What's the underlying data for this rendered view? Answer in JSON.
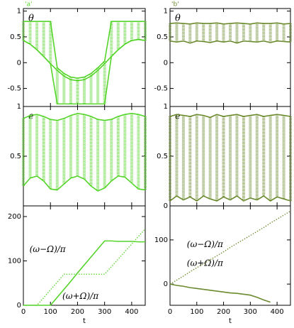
{
  "chart_data": [
    {
      "type": "range",
      "title": "'a'",
      "ylabel": "θ",
      "x": [
        0,
        25,
        50,
        75,
        100,
        125,
        150,
        175,
        200,
        225,
        250,
        275,
        300,
        325,
        350,
        375,
        400,
        425,
        450
      ],
      "xlim": [
        0,
        450
      ],
      "xticks": [
        0,
        100,
        200,
        300,
        400
      ],
      "ylim": [
        -0.85,
        1.05
      ],
      "yticks": [
        -0.5,
        0,
        0.5,
        1
      ],
      "color": "#55d42a",
      "series": [
        {
          "values": [
            0.8,
            0.8,
            0.8,
            0.8,
            0.8,
            -0.1,
            -0.21,
            -0.28,
            -0.3,
            -0.28,
            -0.21,
            -0.1,
            0.03,
            0.8,
            0.8,
            0.8,
            0.8,
            0.8,
            0.8
          ]
        },
        {
          "values": [
            0.43,
            0.36,
            0.25,
            0.12,
            -0.02,
            -0.8,
            -0.8,
            -0.8,
            -0.8,
            -0.8,
            -0.8,
            -0.8,
            -0.8,
            0.12,
            0.25,
            0.36,
            0.43,
            0.45,
            0.43
          ]
        },
        {
          "values": [
            0.43,
            0.36,
            0.25,
            0.12,
            -0.02,
            -0.15,
            -0.26,
            -0.33,
            -0.35,
            -0.33,
            -0.26,
            -0.15,
            -0.02,
            0.12,
            0.25,
            0.36,
            0.43,
            0.45,
            0.43
          ]
        }
      ]
    },
    {
      "type": "range",
      "title": "'b'",
      "ylabel": "θ",
      "x": [
        0,
        25,
        50,
        75,
        100,
        125,
        150,
        175,
        200,
        225,
        250,
        275,
        300,
        325,
        350,
        375,
        400,
        425,
        450
      ],
      "xlim": [
        0,
        450
      ],
      "xticks": [
        0,
        100,
        200,
        300,
        400
      ],
      "ylim": [
        -0.85,
        1.05
      ],
      "yticks": [
        -0.5,
        0,
        0.5,
        1
      ],
      "color": "#6b8a2e",
      "series": [
        {
          "values": [
            0.76,
            0.77,
            0.76,
            0.75,
            0.77,
            0.76,
            0.76,
            0.77,
            0.75,
            0.76,
            0.77,
            0.76,
            0.75,
            0.77,
            0.76,
            0.76,
            0.77,
            0.75,
            0.76
          ]
        },
        {
          "values": [
            0.42,
            0.4,
            0.42,
            0.38,
            0.42,
            0.41,
            0.39,
            0.42,
            0.4,
            0.42,
            0.38,
            0.42,
            0.41,
            0.4,
            0.42,
            0.39,
            0.42,
            0.41,
            0.4
          ]
        }
      ]
    },
    {
      "type": "range",
      "ylabel": "e",
      "x": [
        0,
        25,
        50,
        75,
        100,
        125,
        150,
        175,
        200,
        225,
        250,
        275,
        300,
        325,
        350,
        375,
        400,
        425,
        450
      ],
      "xlim": [
        0,
        450
      ],
      "xticks": [
        0,
        100,
        200,
        300,
        400
      ],
      "ylim": [
        0,
        1
      ],
      "yticks": [
        0.5,
        1
      ],
      "color": "#55d42a",
      "series": [
        {
          "values": [
            0.88,
            0.91,
            0.92,
            0.9,
            0.87,
            0.86,
            0.88,
            0.91,
            0.93,
            0.92,
            0.9,
            0.87,
            0.86,
            0.87,
            0.9,
            0.92,
            0.93,
            0.92,
            0.9
          ]
        },
        {
          "values": [
            0.2,
            0.28,
            0.3,
            0.25,
            0.17,
            0.16,
            0.22,
            0.28,
            0.3,
            0.27,
            0.2,
            0.15,
            0.18,
            0.25,
            0.3,
            0.29,
            0.23,
            0.17,
            0.16
          ]
        }
      ]
    },
    {
      "type": "range",
      "ylabel": "e",
      "x": [
        0,
        25,
        50,
        75,
        100,
        125,
        150,
        175,
        200,
        225,
        250,
        275,
        300,
        325,
        350,
        375,
        400,
        425,
        450
      ],
      "xlim": [
        0,
        450
      ],
      "xticks": [
        0,
        100,
        200,
        300,
        400
      ],
      "ylim": [
        0,
        1
      ],
      "yticks": [
        0,
        0.5,
        1
      ],
      "color": "#6b8a2e",
      "series": [
        {
          "values": [
            0.9,
            0.92,
            0.91,
            0.9,
            0.92,
            0.91,
            0.89,
            0.92,
            0.9,
            0.91,
            0.92,
            0.9,
            0.91,
            0.92,
            0.9,
            0.91,
            0.92,
            0.91,
            0.9
          ]
        },
        {
          "values": [
            0.05,
            0.1,
            0.06,
            0.09,
            0.05,
            0.1,
            0.07,
            0.05,
            0.09,
            0.06,
            0.1,
            0.05,
            0.08,
            0.06,
            0.1,
            0.05,
            0.09,
            0.07,
            0.05
          ]
        }
      ]
    },
    {
      "type": "line",
      "xlabel": "t",
      "x": [
        0,
        25,
        50,
        75,
        100,
        125,
        150,
        175,
        200,
        225,
        250,
        275,
        300,
        325,
        350,
        375,
        400,
        425,
        450
      ],
      "xlim": [
        0,
        450
      ],
      "xticks": [
        0,
        100,
        200,
        300,
        400
      ],
      "ylim": [
        0,
        224
      ],
      "yticks": [
        0,
        100,
        200
      ],
      "color": "#55d42a",
      "annotations": [
        "(ω−Ω)/π",
        "(ω+Ω)/π"
      ],
      "series": [
        {
          "values": [
            0,
            0,
            0,
            0,
            0,
            18,
            36,
            54,
            73,
            91,
            109,
            127,
            145,
            145,
            144,
            144,
            144,
            143,
            143
          ]
        },
        {
          "dotted": true,
          "values": [
            0,
            0,
            0,
            17,
            35,
            52,
            70,
            70,
            70,
            70,
            70,
            70,
            70,
            87,
            104,
            121,
            138,
            155,
            172
          ]
        }
      ]
    },
    {
      "type": "line",
      "xlabel": "t",
      "x": [
        0,
        25,
        50,
        75,
        100,
        125,
        150,
        175,
        200,
        225,
        250,
        275,
        300,
        325,
        350,
        375,
        400,
        425,
        450
      ],
      "xlim": [
        0,
        450
      ],
      "xticks": [
        0,
        100,
        200,
        300,
        400
      ],
      "ylim": [
        -48,
        177
      ],
      "yticks": [
        0,
        100
      ],
      "color": "#6b8a2e",
      "annotations": [
        "(ω−Ω)/π",
        "(ω+Ω)/π"
      ],
      "series": [
        {
          "values": [
            0,
            -3,
            -5,
            -8,
            -10,
            -12,
            -14,
            -16,
            -18,
            -20,
            -21,
            -23,
            -25,
            -30,
            -36,
            -41,
            null,
            null,
            null
          ]
        },
        {
          "dotted": true,
          "values": [
            0,
            9,
            18,
            28,
            37,
            46,
            55,
            64,
            73,
            83,
            92,
            101,
            110,
            119,
            128,
            138,
            147,
            156,
            165
          ]
        }
      ]
    }
  ]
}
